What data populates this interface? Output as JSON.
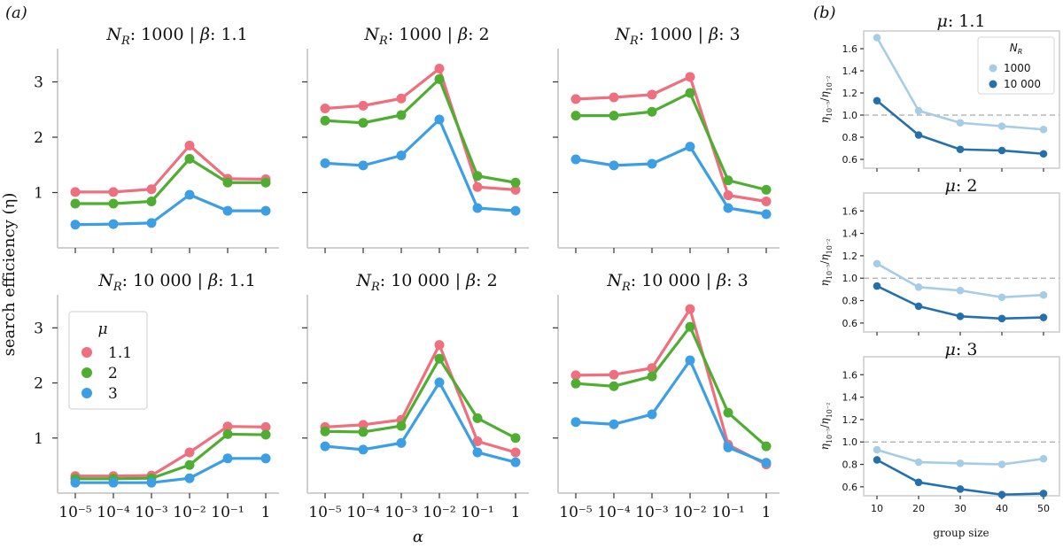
{
  "panel_labels": {
    "a": "(a)",
    "b": "(b)"
  },
  "chart_data": [
    {
      "type": "line",
      "id": "a",
      "ylabel": "search efficiency (η)",
      "xlabel": "α",
      "categories": [
        "10⁻⁵",
        "10⁻⁴",
        "10⁻³",
        "10⁻²",
        "10⁻¹",
        "1"
      ],
      "ylim": [
        0,
        3.6
      ],
      "yticks": [
        1,
        2,
        3
      ],
      "legend": {
        "title": "μ",
        "entries": [
          {
            "label": "1.1",
            "color": "#ee6f7e"
          },
          {
            "label": "2",
            "color": "#4fae32"
          },
          {
            "label": "3",
            "color": "#3d9fe3"
          }
        ]
      },
      "subplots": [
        {
          "title": "N_R: 1000 | β: 1.1",
          "title_parts": [
            "1000",
            "1.1"
          ],
          "series": [
            {
              "name": "1.1",
              "values": [
                1.01,
                1.01,
                1.06,
                1.85,
                1.25,
                1.24
              ]
            },
            {
              "name": "2",
              "values": [
                0.8,
                0.8,
                0.84,
                1.61,
                1.18,
                1.18
              ]
            },
            {
              "name": "3",
              "values": [
                0.42,
                0.43,
                0.45,
                0.96,
                0.67,
                0.67
              ]
            }
          ]
        },
        {
          "title": "N_R: 1000 | β: 2",
          "title_parts": [
            "1000",
            "2"
          ],
          "series": [
            {
              "name": "1.1",
              "values": [
                2.52,
                2.57,
                2.7,
                3.24,
                1.1,
                1.05
              ]
            },
            {
              "name": "2",
              "values": [
                2.3,
                2.26,
                2.4,
                3.05,
                1.3,
                1.18
              ]
            },
            {
              "name": "3",
              "values": [
                1.53,
                1.49,
                1.67,
                2.32,
                0.72,
                0.67
              ]
            }
          ]
        },
        {
          "title": "N_R: 1000 | β: 3",
          "title_parts": [
            "1000",
            "3"
          ],
          "series": [
            {
              "name": "1.1",
              "values": [
                2.69,
                2.72,
                2.77,
                3.09,
                0.95,
                0.84
              ]
            },
            {
              "name": "2",
              "values": [
                2.39,
                2.39,
                2.46,
                2.8,
                1.22,
                1.05
              ]
            },
            {
              "name": "3",
              "values": [
                1.6,
                1.49,
                1.52,
                1.83,
                0.72,
                0.61
              ]
            }
          ]
        },
        {
          "title": "N_R: 10 000 | β: 1.1",
          "title_parts": [
            "10 000",
            "1.1"
          ],
          "series": [
            {
              "name": "1.1",
              "values": [
                0.31,
                0.31,
                0.32,
                0.74,
                1.21,
                1.2
              ]
            },
            {
              "name": "2",
              "values": [
                0.26,
                0.26,
                0.27,
                0.51,
                1.07,
                1.06
              ]
            },
            {
              "name": "3",
              "values": [
                0.19,
                0.19,
                0.19,
                0.27,
                0.63,
                0.63
              ]
            }
          ]
        },
        {
          "title": "N_R: 10 000 | β: 2",
          "title_parts": [
            "10 000",
            "2"
          ],
          "series": [
            {
              "name": "1.1",
              "values": [
                1.2,
                1.24,
                1.33,
                2.69,
                0.94,
                0.74
              ]
            },
            {
              "name": "2",
              "values": [
                1.12,
                1.11,
                1.22,
                2.44,
                1.36,
                1.0
              ]
            },
            {
              "name": "3",
              "values": [
                0.85,
                0.79,
                0.91,
                2.01,
                0.74,
                0.56
              ]
            }
          ]
        },
        {
          "title": "N_R: 10 000 | β: 3",
          "title_parts": [
            "10 000",
            "3"
          ],
          "series": [
            {
              "name": "1.1",
              "values": [
                2.14,
                2.15,
                2.27,
                3.34,
                0.88,
                0.52
              ]
            },
            {
              "name": "2",
              "values": [
                1.99,
                1.94,
                2.12,
                3.02,
                1.46,
                0.85
              ]
            },
            {
              "name": "3",
              "values": [
                1.29,
                1.25,
                1.43,
                2.41,
                0.83,
                0.55
              ]
            }
          ]
        }
      ]
    },
    {
      "type": "line",
      "id": "b",
      "ylabel": "η₁₀⁻⁵/η₁₀⁻²",
      "xlabel": "group size",
      "x": [
        10,
        20,
        30,
        40,
        50
      ],
      "xticks": [
        "10",
        "20",
        "30",
        "40",
        "50"
      ],
      "ylim": [
        0.52,
        1.76
      ],
      "yticks": [
        "0.6",
        "0.8",
        "1.0",
        "1.2",
        "1.4",
        "1.6"
      ],
      "ytick_values": [
        0.6,
        0.8,
        1.0,
        1.2,
        1.4,
        1.6
      ],
      "reference_line": 1.0,
      "legend": {
        "title": "N_R",
        "entries": [
          {
            "label": "1000",
            "color": "#a6cde5"
          },
          {
            "label": "10 000",
            "color": "#2470ad"
          }
        ]
      },
      "subplots": [
        {
          "title": "μ: 1.1",
          "title_parts": [
            "1.1"
          ],
          "series": [
            {
              "name": "1000",
              "values": [
                1.7,
                1.04,
                0.93,
                0.9,
                0.87
              ]
            },
            {
              "name": "10 000",
              "values": [
                1.13,
                0.82,
                0.69,
                0.68,
                0.65
              ]
            }
          ]
        },
        {
          "title": "μ: 2",
          "title_parts": [
            "2"
          ],
          "series": [
            {
              "name": "1000",
              "values": [
                1.13,
                0.92,
                0.89,
                0.83,
                0.85
              ]
            },
            {
              "name": "10 000",
              "values": [
                0.93,
                0.75,
                0.66,
                0.64,
                0.65
              ]
            }
          ]
        },
        {
          "title": "μ: 3",
          "title_parts": [
            "3"
          ],
          "series": [
            {
              "name": "1000",
              "values": [
                0.93,
                0.82,
                0.81,
                0.8,
                0.85
              ]
            },
            {
              "name": "10 000",
              "values": [
                0.84,
                0.64,
                0.58,
                0.53,
                0.54
              ]
            }
          ]
        }
      ]
    }
  ]
}
